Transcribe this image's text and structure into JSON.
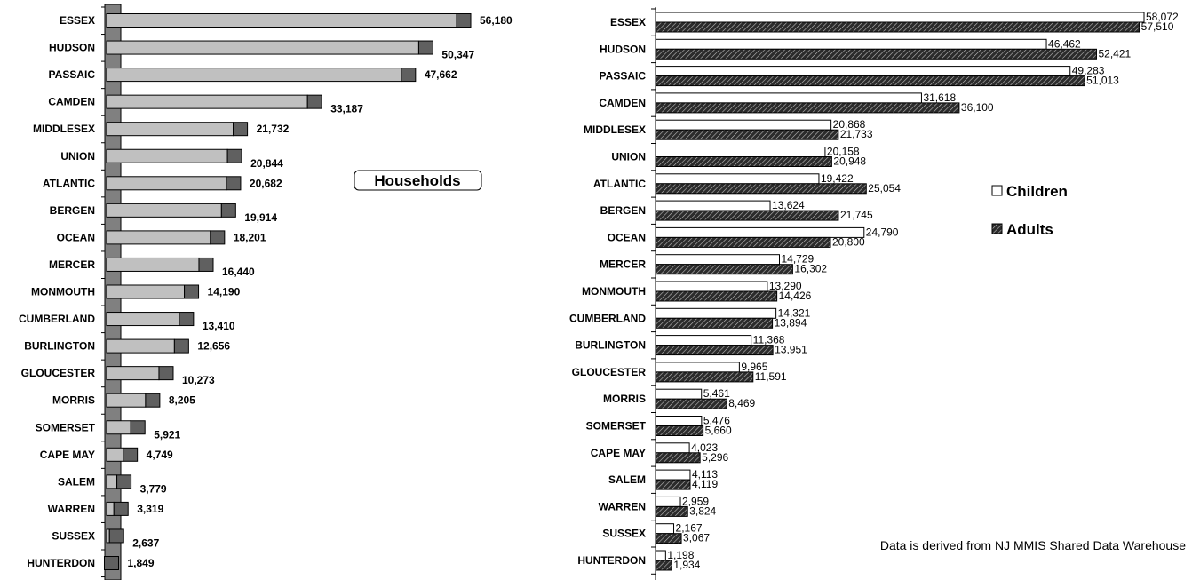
{
  "chart_data": [
    {
      "type": "bar",
      "orientation": "horizontal",
      "title": "Households",
      "categories": [
        "ESSEX",
        "HUDSON",
        "PASSAIC",
        "CAMDEN",
        "MIDDLESEX",
        "UNION",
        "ATLANTIC",
        "BERGEN",
        "OCEAN",
        "MERCER",
        "MONMOUTH",
        "CUMBERLAND",
        "BURLINGTON",
        "GLOUCESTER",
        "MORRIS",
        "SOMERSET",
        "CAPE MAY",
        "SALEM",
        "WARREN",
        "SUSSEX",
        "HUNTERDON"
      ],
      "values": [
        56180,
        50347,
        47662,
        33187,
        21732,
        20844,
        20682,
        19914,
        18201,
        16440,
        14190,
        13410,
        12656,
        10273,
        8205,
        5921,
        4749,
        3779,
        3319,
        2637,
        1849
      ],
      "value_labels": [
        "56,180",
        "50,347",
        "47,662",
        "33,187",
        "21,732",
        "20,844",
        "20,682",
        "19,914",
        "18,201",
        "16,440",
        "14,190",
        "13,410",
        "12,656",
        "10,273",
        "8,205",
        "5,921",
        "4,749",
        "3,779",
        "3,319",
        "2,637",
        "1,849"
      ],
      "colors": {
        "bar": "#c0c0c0",
        "bar_end": "#606060",
        "axis_wall": "#808080"
      }
    },
    {
      "type": "bar",
      "orientation": "horizontal",
      "categories": [
        "ESSEX",
        "HUDSON",
        "PASSAIC",
        "CAMDEN",
        "MIDDLESEX",
        "UNION",
        "ATLANTIC",
        "BERGEN",
        "OCEAN",
        "MERCER",
        "MONMOUTH",
        "CUMBERLAND",
        "BURLINGTON",
        "GLOUCESTER",
        "MORRIS",
        "SOMERSET",
        "CAPE MAY",
        "SALEM",
        "WARREN",
        "SUSSEX",
        "HUNTERDON"
      ],
      "series": [
        {
          "name": "Children",
          "values": [
            58072,
            46462,
            49283,
            31618,
            20868,
            20158,
            19422,
            13624,
            24790,
            14729,
            13290,
            14321,
            11368,
            9965,
            5461,
            5476,
            4023,
            4113,
            2959,
            2167,
            1198
          ],
          "labels": [
            "58,072",
            "46,462",
            "49,283",
            "31,618",
            "20,868",
            "20,158",
            "19,422",
            "13,624",
            "24,790",
            "14,729",
            "13,290",
            "14,321",
            "11,368",
            "9,965",
            "5,461",
            "5,476",
            "4,023",
            "4,113",
            "2,959",
            "2,167",
            "1,198"
          ]
        },
        {
          "name": "Adults",
          "values": [
            57510,
            52421,
            51013,
            36100,
            21733,
            20948,
            25054,
            21745,
            20800,
            16302,
            14426,
            13894,
            13951,
            11591,
            8469,
            5660,
            5296,
            4119,
            3824,
            3067,
            1934
          ],
          "labels": [
            "57,510",
            "52,421",
            "51,013",
            "36,100",
            "21,733",
            "20,948",
            "25,054",
            "21,745",
            "20,800",
            "16,302",
            "14,426",
            "13,894",
            "13,951",
            "11,591",
            "8,469",
            "5,660",
            "5,296",
            "4,119",
            "3,824",
            "3,067",
            "1,934"
          ]
        }
      ],
      "legend": {
        "position": "right",
        "items": [
          "Children",
          "Adults"
        ]
      },
      "colors": {
        "children": "#ffffff",
        "adults": "#333333"
      }
    }
  ],
  "note": "Data is derived from NJ MMIS Shared Data Warehouse"
}
